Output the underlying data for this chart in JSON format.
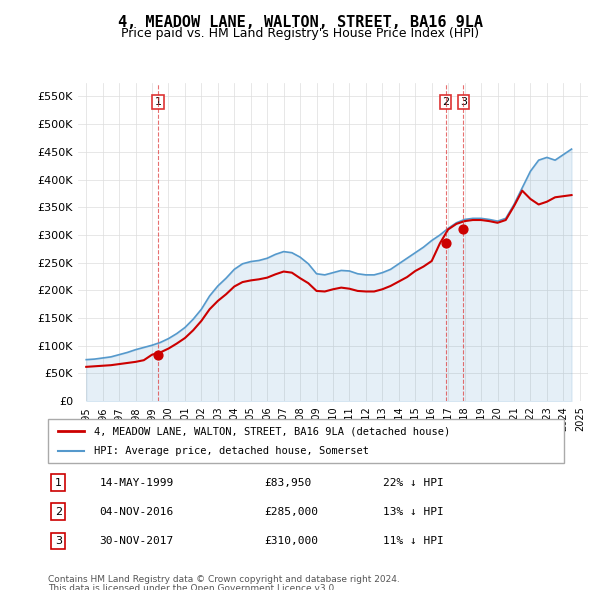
{
  "title": "4, MEADOW LANE, WALTON, STREET, BA16 9LA",
  "subtitle": "Price paid vs. HM Land Registry's House Price Index (HPI)",
  "legend_label_red": "4, MEADOW LANE, WALTON, STREET, BA16 9LA (detached house)",
  "legend_label_blue": "HPI: Average price, detached house, Somerset",
  "footer1": "Contains HM Land Registry data © Crown copyright and database right 2024.",
  "footer2": "This data is licensed under the Open Government Licence v3.0.",
  "transactions": [
    {
      "num": 1,
      "date": "14-MAY-1999",
      "price": 83950,
      "pct": "22%",
      "dir": "↓"
    },
    {
      "num": 2,
      "date": "04-NOV-2016",
      "price": 285000,
      "pct": "13%",
      "dir": "↓"
    },
    {
      "num": 3,
      "date": "30-NOV-2017",
      "price": 310000,
      "pct": "11%",
      "dir": "↓"
    }
  ],
  "sale_years": [
    1999.37,
    2016.84,
    2017.92
  ],
  "sale_prices": [
    83950,
    285000,
    310000
  ],
  "red_color": "#cc0000",
  "blue_color": "#5599cc",
  "dashed_red_color": "#dd3333",
  "ylim": [
    0,
    575000
  ],
  "yticks": [
    0,
    50000,
    100000,
    150000,
    200000,
    250000,
    300000,
    350000,
    400000,
    450000,
    500000,
    550000
  ],
  "xlim": [
    1994.5,
    2025.5
  ]
}
